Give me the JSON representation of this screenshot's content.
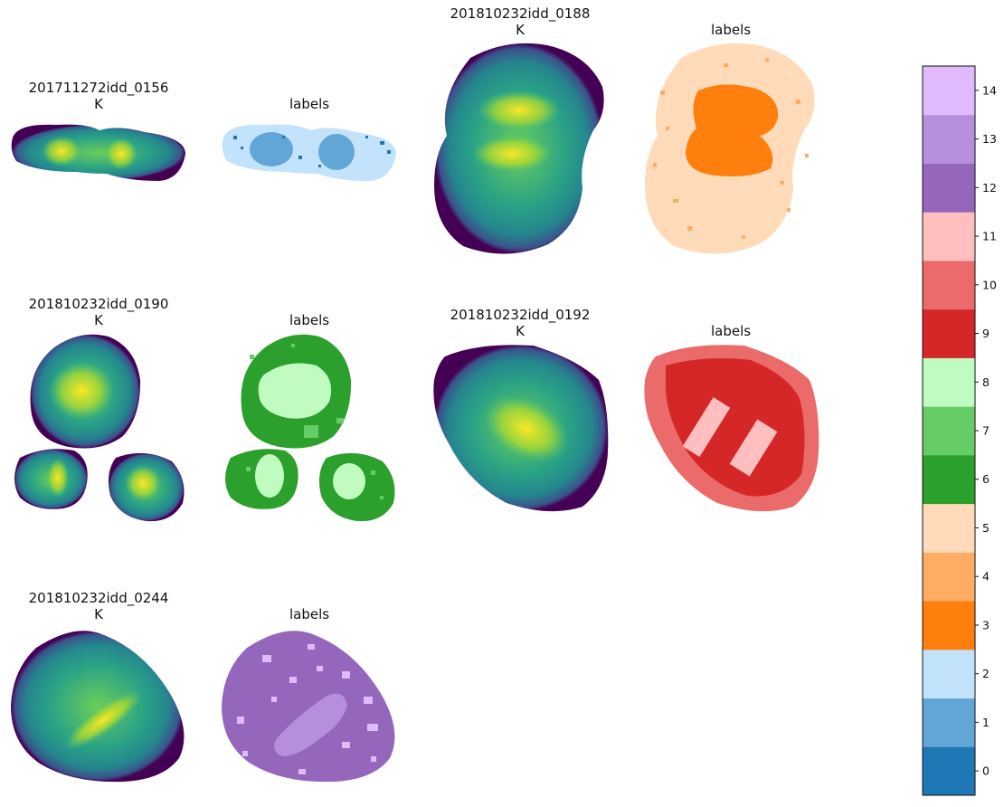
{
  "chart_data": {
    "type": "heatmap",
    "colorbar": {
      "ticks": [
        "0",
        "1",
        "2",
        "3",
        "4",
        "5",
        "6",
        "7",
        "8",
        "9",
        "10",
        "11",
        "12",
        "13",
        "14"
      ],
      "colors": [
        "#1f77b4",
        "#62a6d8",
        "#c2e3fb",
        "#ff7f0e",
        "#ffad65",
        "#ffdbba",
        "#2ca02c",
        "#66cc66",
        "#c0fcc0",
        "#d62728",
        "#eb6b6b",
        "#ffbfbf",
        "#9467bd",
        "#b68fdc",
        "#dfbbfe"
      ]
    },
    "panels": [
      {
        "title_line1": "201711272idd_0156",
        "title_line2": "K",
        "label_title": "labels",
        "label_base": 2,
        "label_core": 1,
        "label_speck": 0
      },
      {
        "title_line1": "201810232idd_0188",
        "title_line2": "K",
        "label_title": "labels",
        "label_base": 5,
        "label_core": 3,
        "label_speck": 4
      },
      {
        "title_line1": "201810232idd_0190",
        "title_line2": "K",
        "label_title": "labels",
        "label_base": 6,
        "label_core": 8,
        "label_speck": 7
      },
      {
        "title_line1": "201810232idd_0192",
        "title_line2": "K",
        "label_title": "labels",
        "label_base": 10,
        "label_core": 11,
        "label_speck": 9
      },
      {
        "title_line1": "201810232idd_0244",
        "title_line2": "K",
        "label_title": "labels",
        "label_base": 12,
        "label_core": 13,
        "label_speck": 14
      }
    ],
    "k_colormap": "viridis"
  }
}
